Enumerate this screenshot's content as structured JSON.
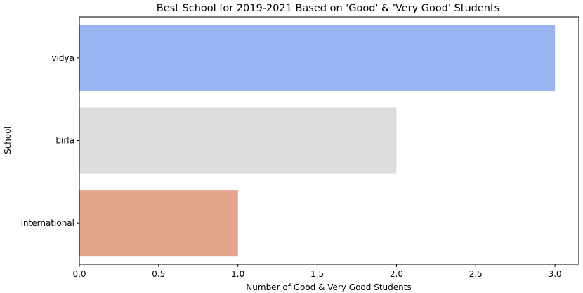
{
  "chart_data": {
    "type": "bar",
    "orientation": "horizontal",
    "title": "Best School for 2019-2021 Based on 'Good' & 'Very Good' Students",
    "xlabel": "Number of Good & Very Good Students",
    "ylabel": "School",
    "categories": [
      "vidya",
      "birla",
      "international"
    ],
    "values": [
      3,
      2,
      1
    ],
    "colors": [
      "#9ab4f1",
      "#dcdcdc",
      "#e4a38b"
    ],
    "xlim": [
      0,
      3.15
    ],
    "xticks": [
      0.0,
      0.5,
      1.0,
      1.5,
      2.0,
      2.5,
      3.0
    ],
    "xtick_labels": [
      "0.0",
      "0.5",
      "1.0",
      "1.5",
      "2.0",
      "2.5",
      "3.0"
    ],
    "grid": false,
    "legend": "none"
  }
}
